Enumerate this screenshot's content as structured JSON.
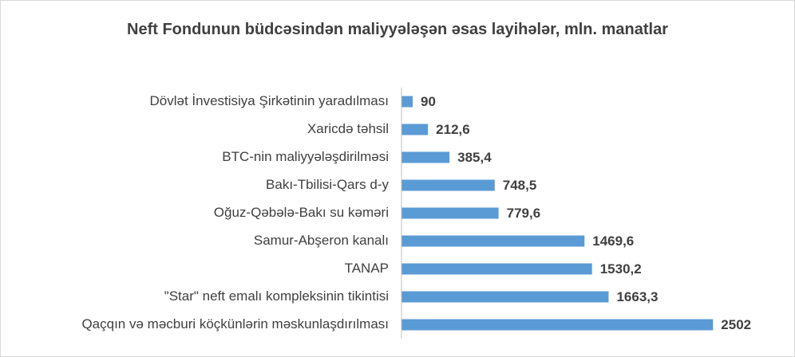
{
  "chart_data": {
    "type": "bar",
    "orientation": "horizontal",
    "title": "Neft Fondunun büdcəsindən maliyyələşən əsas layihələr, mln. manatlar",
    "categories": [
      "Dövlət İnvestisiya Şirkətinin yaradılması",
      "Xaricdə təhsil",
      "BTC-nin maliyyələşdirilməsi",
      "Bakı-Tbilisi-Qars d-y",
      "Oğuz-Qəbələ-Bakı su kəməri",
      "Samur-Abşeron kanalı",
      "TANAP",
      "\"Star\" neft emalı kompleksinin tikintisi",
      "Qaçqın və məcburi köçkünlərin məskunlaşdırılması"
    ],
    "values": [
      90,
      212.6,
      385.4,
      748.5,
      779.6,
      1469.6,
      1530.2,
      1663.3,
      2502
    ],
    "value_labels": [
      "90",
      "212,6",
      "385,4",
      "748,5",
      "779,6",
      "1469,6",
      "1530,2",
      "1663,3",
      "2502"
    ],
    "color": "#5b9bd5",
    "xlim": [
      0,
      3000
    ]
  }
}
